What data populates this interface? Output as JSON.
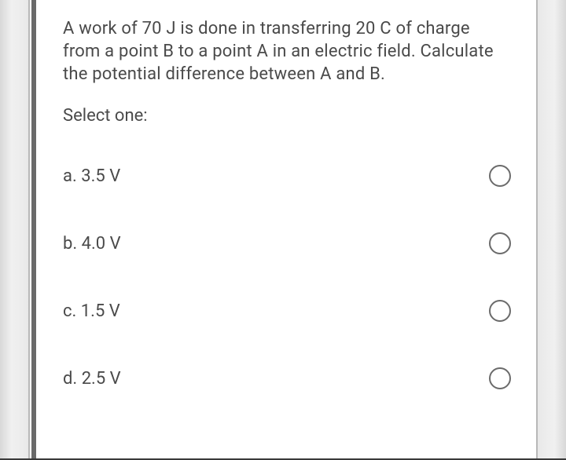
{
  "question": {
    "text": "A work of 70 J is done in transferring 20 C of charge from a point B to a point A in an electric field. Calculate the potential difference between A and B.",
    "prompt": "Select one:",
    "font_size": 22,
    "text_color": "#4a4a4a"
  },
  "options": [
    {
      "letter": "a.",
      "value": "3.5 V"
    },
    {
      "letter": "b.",
      "value": "4.0 V"
    },
    {
      "letter": "c.",
      "value": "1.5 V"
    },
    {
      "letter": "d.",
      "value": "2.5 V"
    }
  ],
  "styling": {
    "radio_border_color": "#6b6b6b",
    "radio_size": 28,
    "left_bar_color": "#6a6a6a",
    "background": "#ffffff",
    "side_strip_width": 38
  }
}
